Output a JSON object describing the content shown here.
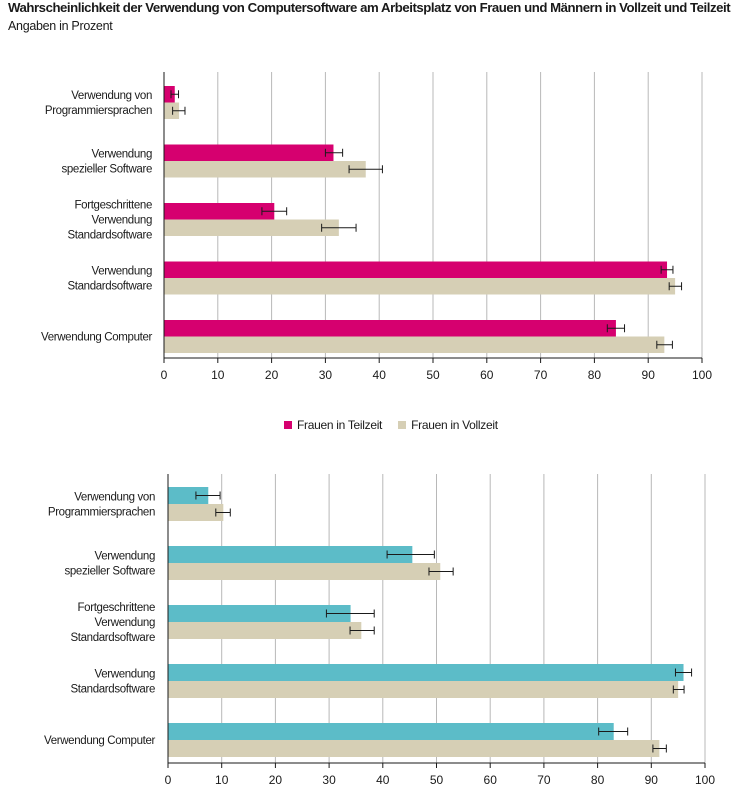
{
  "title": "Wahrscheinlichkeit der Verwendung von Computersoftware am Arbeitsplatz von Frauen und Männern in Vollzeit und Teilzeit",
  "subtitle": "Angaben in Prozent",
  "colors": {
    "frauen_teilzeit": "#d6006f",
    "frauen_vollzeit": "#d6cfb5",
    "maenner_teilzeit": "#5cbcc8",
    "maenner_vollzeit": "#d6cfb5"
  },
  "chart_data": [
    {
      "type": "bar",
      "orientation": "horizontal",
      "categories": [
        [
          "Verwendung von",
          "Programmiersprachen"
        ],
        [
          "Verwendung",
          "spezieller Software"
        ],
        [
          "Fortgeschrittene",
          "Verwendung",
          "Standardsoftware"
        ],
        [
          "Verwendung",
          "Standardsoftware"
        ],
        [
          "Verwendung Computer"
        ]
      ],
      "series": [
        {
          "name": "Frauen in Teilzeit",
          "color": "#d6006f",
          "values": [
            2,
            31.5,
            20.5,
            93.5,
            84
          ],
          "error_low": [
            1.3,
            30,
            18.2,
            92.4,
            82.4
          ],
          "error_high": [
            2.7,
            33.2,
            22.8,
            94.6,
            85.6
          ]
        },
        {
          "name": "Frauen in Vollzeit",
          "color": "#d6cfb5",
          "values": [
            2.8,
            37.5,
            32.5,
            95,
            93
          ],
          "error_low": [
            1.6,
            34.4,
            29.3,
            93.9,
            91.6
          ],
          "error_high": [
            3.9,
            40.6,
            35.7,
            96.2,
            94.5
          ]
        }
      ],
      "xlim": [
        0,
        100
      ],
      "xticks": [
        "0",
        "10",
        "20",
        "30",
        "40",
        "50",
        "60",
        "70",
        "80",
        "90",
        "100"
      ],
      "grid": true,
      "legend": "bottom"
    },
    {
      "type": "bar",
      "orientation": "horizontal",
      "categories": [
        [
          "Verwendung von",
          "Programmiersprachen"
        ],
        [
          "Verwendung",
          "spezieller Software"
        ],
        [
          "Fortgeschrittene",
          "Verwendung",
          "Standardsoftware"
        ],
        [
          "Verwendung",
          "Standardsoftware"
        ],
        [
          "Verwendung Computer"
        ]
      ],
      "series": [
        {
          "color": "#5cbcc8",
          "values": [
            7.5,
            45.5,
            34,
            96,
            83
          ],
          "error_low": [
            5.2,
            40.8,
            29.5,
            94.5,
            80.2
          ],
          "error_high": [
            9.7,
            49.6,
            38.4,
            97.5,
            85.6
          ]
        },
        {
          "color": "#d6cfb5",
          "values": [
            10.3,
            50.7,
            36,
            95,
            91.5
          ],
          "error_low": [
            8.9,
            48.6,
            33.9,
            94.1,
            90.3
          ],
          "error_high": [
            11.6,
            53.1,
            38.4,
            96.1,
            92.8
          ]
        }
      ],
      "xlim": [
        0,
        100
      ],
      "xticks": [
        "0",
        "10",
        "20",
        "30",
        "40",
        "50",
        "60",
        "70",
        "80",
        "90",
        "100"
      ],
      "grid": true,
      "legend": "none"
    }
  ]
}
